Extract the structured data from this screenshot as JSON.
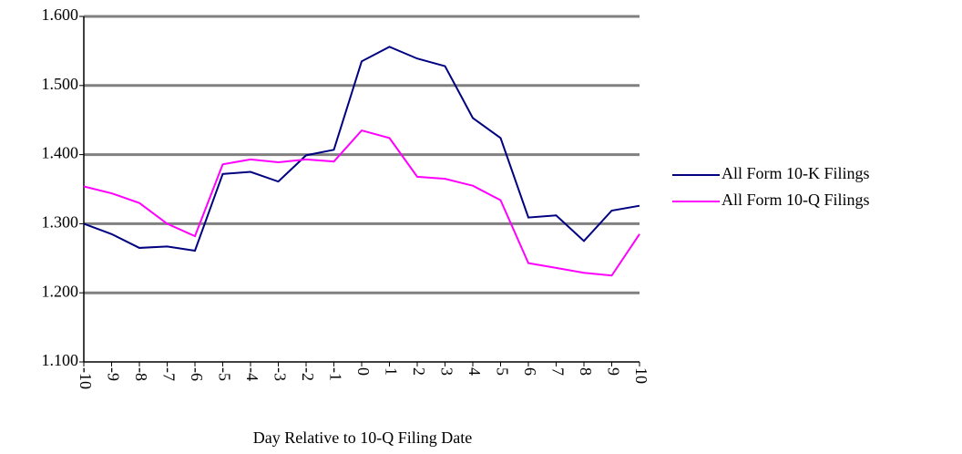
{
  "chart_data": {
    "type": "line",
    "x_label": "Day Relative to 10-Q Filing Date",
    "x": [
      -10,
      -9,
      -8,
      -7,
      -6,
      -5,
      -4,
      -3,
      -2,
      -1,
      0,
      1,
      2,
      3,
      4,
      5,
      6,
      7,
      8,
      9,
      10
    ],
    "xlim": [
      -10,
      10
    ],
    "xticks": [
      -10,
      -9,
      -8,
      -7,
      -6,
      -5,
      -4,
      -3,
      -2,
      -1,
      0,
      1,
      2,
      3,
      4,
      5,
      6,
      7,
      8,
      9,
      10
    ],
    "ylim": [
      1.1,
      1.6
    ],
    "yticks": [
      {
        "value": 1.1,
        "label": "1.100"
      },
      {
        "value": 1.2,
        "label": "1.200"
      },
      {
        "value": 1.3,
        "label": "1.300"
      },
      {
        "value": 1.4,
        "label": "1.400"
      },
      {
        "value": 1.5,
        "label": "1.500"
      },
      {
        "value": 1.6,
        "label": "1.600"
      }
    ],
    "grid": true,
    "legend": "right",
    "series": [
      {
        "name": "All Form 10-K Filings",
        "color": "#000080",
        "values": [
          1.3,
          1.285,
          1.265,
          1.267,
          1.261,
          1.372,
          1.375,
          1.361,
          1.399,
          1.407,
          1.535,
          1.556,
          1.539,
          1.528,
          1.453,
          1.424,
          1.309,
          1.312,
          1.275,
          1.319,
          1.326
        ]
      },
      {
        "name": "All Form 10-Q Filings",
        "color": "#ff00ff",
        "values": [
          1.354,
          1.344,
          1.33,
          1.3,
          1.282,
          1.386,
          1.393,
          1.389,
          1.393,
          1.39,
          1.435,
          1.424,
          1.368,
          1.365,
          1.355,
          1.334,
          1.243,
          1.236,
          1.229,
          1.225,
          1.285
        ]
      }
    ]
  }
}
